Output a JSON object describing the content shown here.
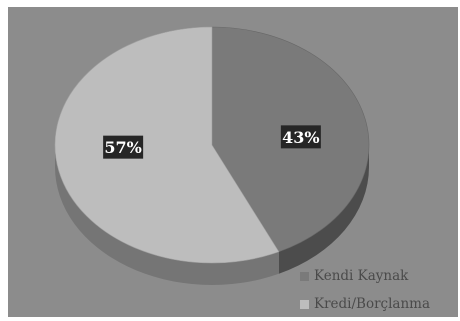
{
  "chart_data": {
    "type": "pie",
    "title": "",
    "slices": [
      {
        "label": "Kendi Kaynak",
        "value": 43,
        "value_label": "43%",
        "color": "#7a7a7a"
      },
      {
        "label": "Kredi/Borçlanma",
        "value": 57,
        "value_label": "57%",
        "color": "#bdbdbd"
      }
    ],
    "legend_position": "bottom-right",
    "style": "3d",
    "background": "#8c8c8c"
  }
}
